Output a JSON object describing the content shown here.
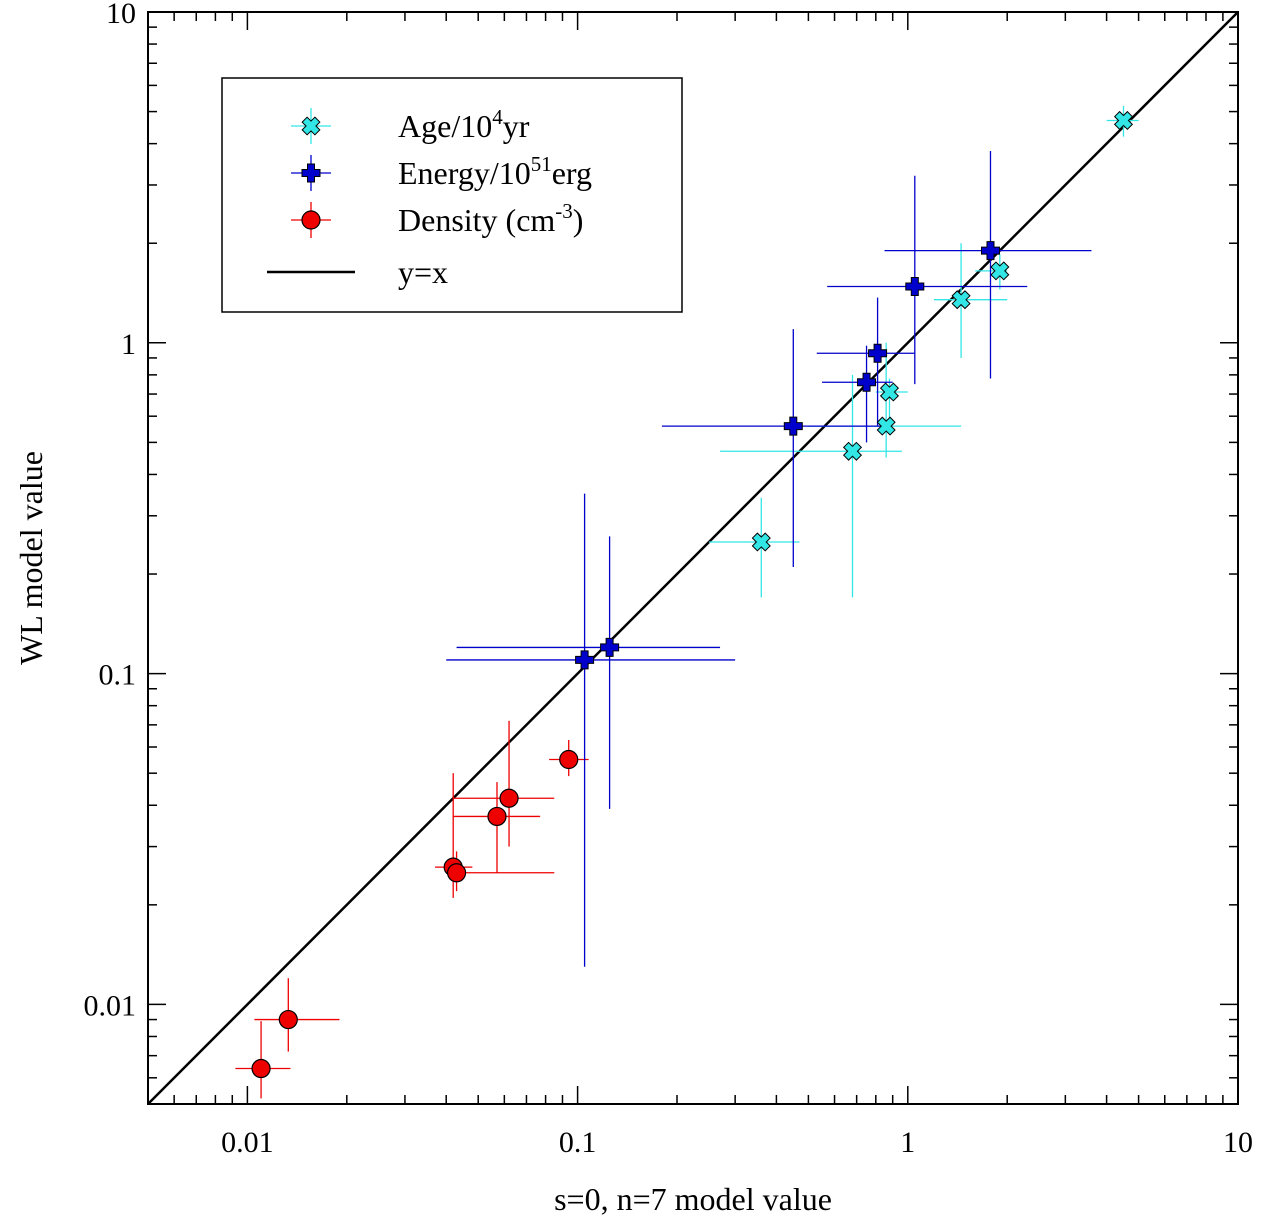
{
  "chart_data": {
    "type": "scatter",
    "title": "",
    "xlabel": "s=0, n=7 model value",
    "ylabel": "WL model value",
    "xscale": "log",
    "yscale": "log",
    "xlim": [
      0.005,
      10
    ],
    "ylim": [
      0.005,
      10
    ],
    "x_tick_labels": [
      "0.01",
      "0.1",
      "1",
      "10"
    ],
    "y_tick_labels": [
      "0.01",
      "0.1",
      "1",
      "10"
    ],
    "grid": false,
    "legend_position": "top-left",
    "series": [
      {
        "name": "Age/10^4yr",
        "label_main": "Age/10",
        "label_sup": "4",
        "label_tail": "yr",
        "marker": "x",
        "color": "#33e6e6",
        "points": [
          {
            "x": 4.5,
            "y": 4.7,
            "xerr": [
              4.0,
              5.0
            ],
            "yerr": [
              4.2,
              5.2
            ]
          },
          {
            "x": 1.9,
            "y": 1.65,
            "xerr": [
              1.6,
              2.0
            ],
            "yerr": [
              1.45,
              1.85
            ]
          },
          {
            "x": 1.45,
            "y": 1.35,
            "xerr": [
              1.2,
              2.0
            ],
            "yerr": [
              0.9,
              2.0
            ]
          },
          {
            "x": 0.88,
            "y": 0.71,
            "xerr": [
              0.8,
              1.0
            ],
            "yerr": [
              0.58,
              0.78
            ]
          },
          {
            "x": 0.86,
            "y": 0.56,
            "xerr": [
              0.5,
              1.45
            ],
            "yerr": [
              0.45,
              1.0
            ]
          },
          {
            "x": 0.68,
            "y": 0.47,
            "xerr": [
              0.27,
              0.96
            ],
            "yerr": [
              0.17,
              0.8
            ]
          },
          {
            "x": 0.36,
            "y": 0.25,
            "xerr": [
              0.25,
              0.47
            ],
            "yerr": [
              0.17,
              0.34
            ]
          }
        ]
      },
      {
        "name": "Energy/10^51erg",
        "label_main": "Energy/10",
        "label_sup": "51",
        "label_tail": "erg",
        "marker": "plus",
        "color": "#0000cc",
        "points": [
          {
            "x": 1.78,
            "y": 1.9,
            "xerr": [
              0.85,
              3.6
            ],
            "yerr": [
              0.78,
              3.8
            ]
          },
          {
            "x": 1.05,
            "y": 1.48,
            "xerr": [
              0.57,
              2.3
            ],
            "yerr": [
              0.75,
              3.2
            ]
          },
          {
            "x": 0.81,
            "y": 0.93,
            "xerr": [
              0.53,
              1.05
            ],
            "yerr": [
              0.56,
              1.37
            ]
          },
          {
            "x": 0.75,
            "y": 0.76,
            "xerr": [
              0.55,
              0.9
            ],
            "yerr": [
              0.5,
              0.98
            ]
          },
          {
            "x": 0.45,
            "y": 0.56,
            "xerr": [
              0.18,
              0.83
            ],
            "yerr": [
              0.21,
              1.1
            ]
          },
          {
            "x": 0.125,
            "y": 0.12,
            "xerr": [
              0.043,
              0.27
            ],
            "yerr": [
              0.039,
              0.26
            ]
          },
          {
            "x": 0.105,
            "y": 0.11,
            "xerr": [
              0.04,
              0.3
            ],
            "yerr": [
              0.013,
              0.35
            ]
          }
        ]
      },
      {
        "name": "Density (cm^-3)",
        "label_main": "Density (cm",
        "label_sup": "-3",
        "label_tail": ")",
        "marker": "circle",
        "color": "#ee0000",
        "points": [
          {
            "x": 0.094,
            "y": 0.055,
            "xerr": [
              0.082,
              0.108
            ],
            "yerr": [
              0.049,
              0.063
            ]
          },
          {
            "x": 0.062,
            "y": 0.042,
            "xerr": [
              0.042,
              0.085
            ],
            "yerr": [
              0.03,
              0.072
            ]
          },
          {
            "x": 0.057,
            "y": 0.037,
            "xerr": [
              0.042,
              0.077
            ],
            "yerr": [
              0.025,
              0.047
            ]
          },
          {
            "x": 0.042,
            "y": 0.026,
            "xerr": [
              0.037,
              0.048
            ],
            "yerr": [
              0.021,
              0.05
            ]
          },
          {
            "x": 0.043,
            "y": 0.025,
            "xerr": [
              0.04,
              0.085
            ],
            "yerr": [
              0.022,
              0.029
            ]
          },
          {
            "x": 0.0133,
            "y": 0.009,
            "xerr": [
              0.0105,
              0.019
            ],
            "yerr": [
              0.0072,
              0.012
            ]
          },
          {
            "x": 0.011,
            "y": 0.0064,
            "xerr": [
              0.0092,
              0.0135
            ],
            "yerr": [
              0.0052,
              0.0089
            ]
          }
        ]
      },
      {
        "name": "y=x",
        "label_main": "y=x",
        "label_sup": "",
        "label_tail": "",
        "marker": "line",
        "color": "#000000"
      }
    ]
  }
}
